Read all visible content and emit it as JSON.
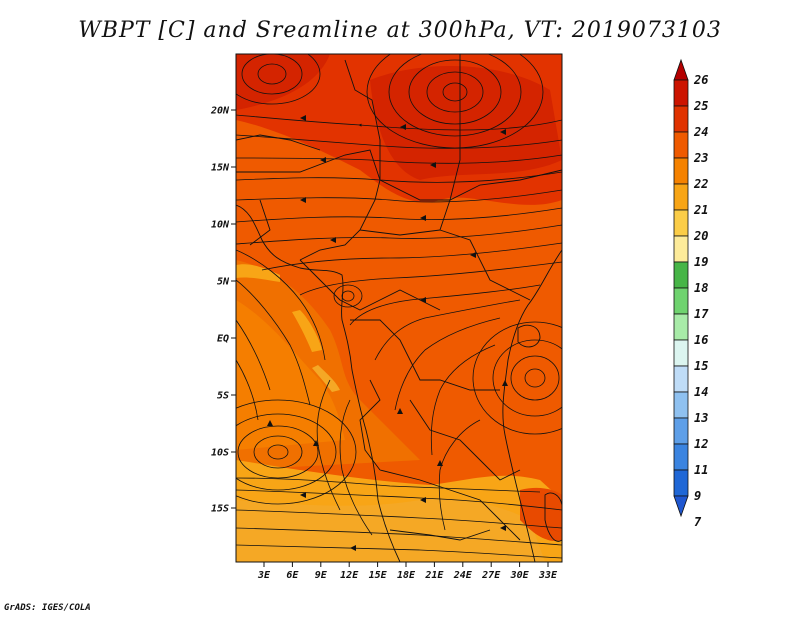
{
  "title": "WBPT [C] and Sreamline at 300hPa, VT: 2019073103",
  "credit": "GrADS: IGES/COLA",
  "map": {
    "lat_labels": [
      "20N",
      "15N",
      "10N",
      "5N",
      "EQ",
      "5S",
      "10S",
      "15S"
    ],
    "lon_labels": [
      "3E",
      "6E",
      "9E",
      "12E",
      "15E",
      "18E",
      "21E",
      "24E",
      "27E",
      "30E",
      "33E"
    ]
  },
  "colorbar": {
    "labels": [
      "26",
      "25",
      "24",
      "23",
      "22",
      "21",
      "20",
      "19",
      "18",
      "17",
      "16",
      "15",
      "14",
      "13",
      "12",
      "11",
      "9",
      "7"
    ],
    "colors": [
      "#b40000",
      "#cc1400",
      "#e03200",
      "#ef5a00",
      "#f58200",
      "#f8a516",
      "#fbcd48",
      "#fdeb9a",
      "#47b547",
      "#6fd36f",
      "#a8eba8",
      "#dcf5f0",
      "#bfdcf7",
      "#8fc1f0",
      "#5e9fe8",
      "#3b84e0",
      "#1f67d6",
      "#1f57d0"
    ]
  }
}
